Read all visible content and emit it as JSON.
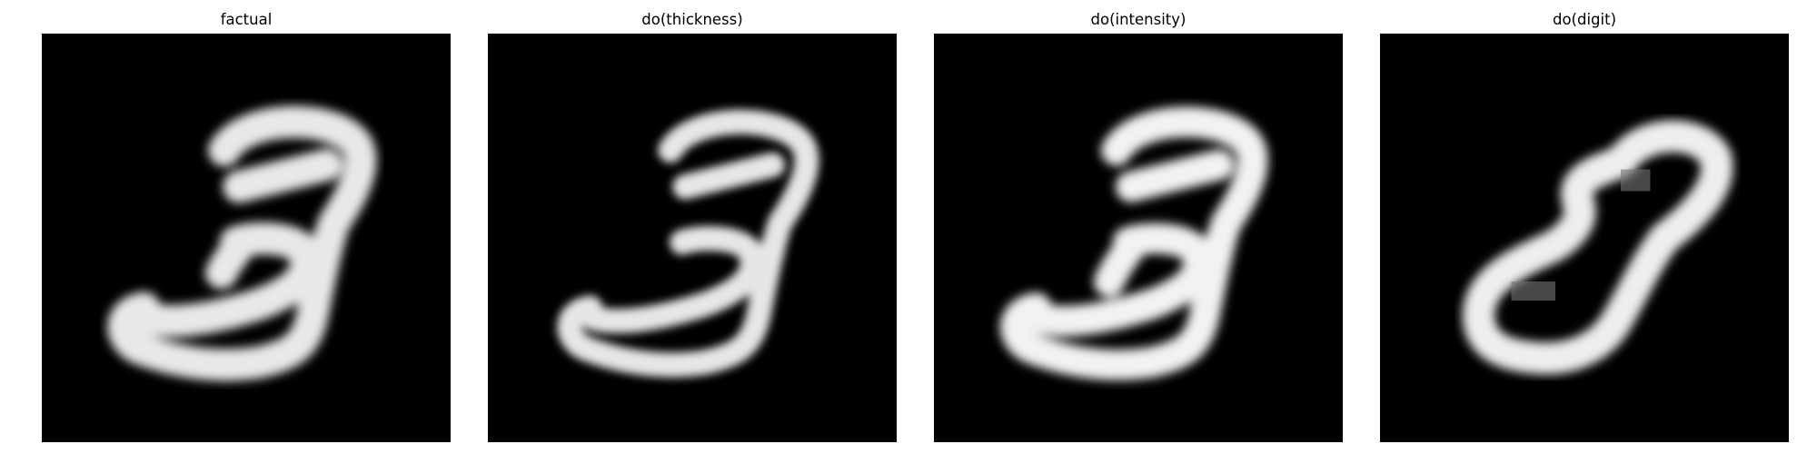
{
  "figure": {
    "panels": [
      {
        "title": "factual",
        "image": {
          "colormap": "gray",
          "resolution": "28x28",
          "content": "handwritten digit 3"
        }
      },
      {
        "title": "do(thickness)",
        "image": {
          "colormap": "gray",
          "resolution": "28x28",
          "content": "handwritten digit 3, thinner stroke"
        }
      },
      {
        "title": "do(intensity)",
        "image": {
          "colormap": "gray",
          "resolution": "28x28",
          "content": "handwritten digit 3"
        }
      },
      {
        "title": "do(digit)",
        "image": {
          "colormap": "gray",
          "resolution": "28x28",
          "content": "handwritten digit 8"
        }
      }
    ]
  }
}
